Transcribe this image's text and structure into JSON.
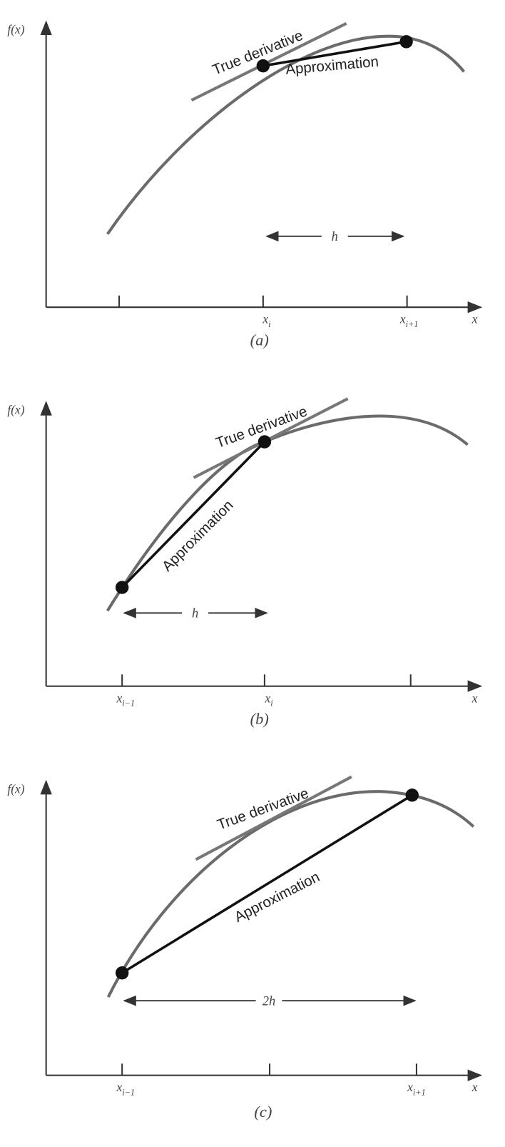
{
  "panels": [
    {
      "y_label": "f(x)",
      "x_label": "x",
      "caption": "(a)",
      "tangent_label": "True derivative",
      "approximation_label": "Approximation",
      "step_label": "h",
      "tick_labels": [
        {
          "base": "x",
          "sub": "i"
        },
        {
          "base": "x",
          "sub": "i+1"
        }
      ]
    },
    {
      "y_label": "f(x)",
      "x_label": "x",
      "caption": "(b)",
      "tangent_label": "True derivative",
      "approximation_label": "Approximation",
      "step_label": "h",
      "tick_labels": [
        {
          "base": "x",
          "sub": "i−1"
        },
        {
          "base": "x",
          "sub": "i"
        }
      ]
    },
    {
      "y_label": "f(x)",
      "x_label": "x",
      "caption": "(c)",
      "tangent_label": "True derivative",
      "approximation_label": "Approximation",
      "step_label": "2h",
      "tick_labels": [
        {
          "base": "x",
          "sub": "i−1"
        },
        {
          "base": "x",
          "sub": "i+1"
        }
      ]
    }
  ]
}
